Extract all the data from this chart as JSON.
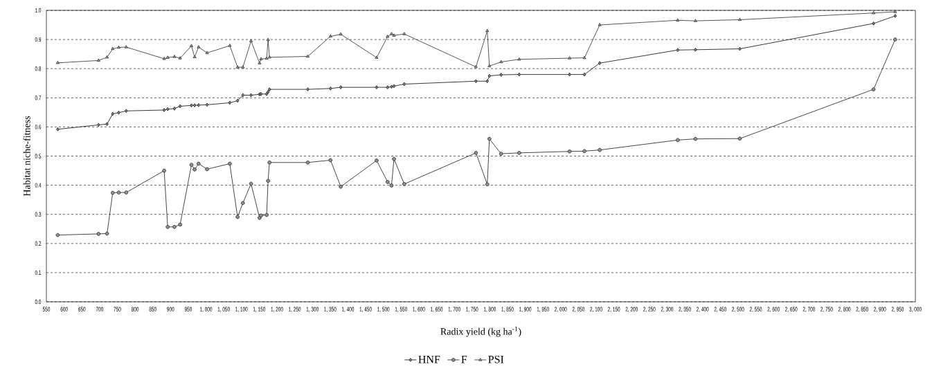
{
  "chart_data": {
    "type": "line",
    "xlabel": "Radix yield (kg ha$^{-1}$)",
    "ylabel": "Habitat niche-fitness",
    "x": [
      582,
      697,
      721,
      737,
      754,
      775,
      882,
      892,
      911,
      927,
      959,
      968,
      979,
      1003,
      1067,
      1089,
      1104,
      1127,
      1151,
      1155,
      1171,
      1175,
      1179,
      1287,
      1351,
      1380,
      1481,
      1512,
      1523,
      1530,
      1559,
      1761,
      1793,
      1799,
      1832,
      1883,
      2025,
      2067,
      2110,
      2330,
      2380,
      2505,
      2882,
      2943
    ],
    "series": [
      {
        "name": "HNF",
        "color": "#222222",
        "marker": "diamond",
        "values": [
          0.592,
          0.607,
          0.61,
          0.645,
          0.649,
          0.655,
          0.658,
          0.661,
          0.663,
          0.671,
          0.674,
          0.674,
          0.675,
          0.676,
          0.683,
          0.69,
          0.709,
          0.709,
          0.712,
          0.713,
          0.713,
          0.72,
          0.729,
          0.729,
          0.732,
          0.736,
          0.736,
          0.736,
          0.738,
          0.74,
          0.747,
          0.757,
          0.757,
          0.775,
          0.779,
          0.78,
          0.78,
          0.78,
          0.819,
          0.864,
          0.865,
          0.868,
          0.955,
          0.981
        ]
      },
      {
        "name": "F",
        "color": "#333333",
        "marker": "circle",
        "values": [
          0.229,
          0.233,
          0.234,
          0.374,
          0.375,
          0.375,
          0.45,
          0.257,
          0.257,
          0.265,
          0.47,
          0.454,
          0.474,
          0.455,
          0.474,
          0.291,
          0.339,
          0.405,
          0.288,
          0.296,
          0.298,
          0.415,
          0.478,
          0.478,
          0.486,
          0.395,
          0.485,
          0.411,
          0.399,
          0.49,
          0.404,
          0.511,
          0.403,
          0.559,
          0.508,
          0.511,
          0.516,
          0.517,
          0.521,
          0.555,
          0.559,
          0.56,
          0.729,
          0.9
        ]
      },
      {
        "name": "PSI",
        "color": "#444444",
        "marker": "triangle",
        "values": [
          0.82,
          0.828,
          0.839,
          0.868,
          0.873,
          0.874,
          0.834,
          0.838,
          0.841,
          0.836,
          0.878,
          0.84,
          0.874,
          0.854,
          0.879,
          0.805,
          0.805,
          0.895,
          0.819,
          0.833,
          0.835,
          0.899,
          0.839,
          0.842,
          0.911,
          0.918,
          0.838,
          0.91,
          0.919,
          0.914,
          0.919,
          0.806,
          0.93,
          0.809,
          0.823,
          0.832,
          0.836,
          0.837,
          0.95,
          0.966,
          0.964,
          0.968,
          0.991,
          0.995
        ]
      }
    ],
    "line_style": "solid",
    "xlim": [
      550,
      3000
    ],
    "xticks": [
      550,
      600,
      650,
      700,
      750,
      800,
      850,
      900,
      950,
      {
        "value": 1000,
        "label": "1, 000"
      },
      {
        "value": 1050,
        "label": "1, 050"
      },
      {
        "value": 1100,
        "label": "1, 100"
      },
      {
        "value": 1150,
        "label": "1, 150"
      },
      {
        "value": 1200,
        "label": "1, 200"
      },
      {
        "value": 1250,
        "label": "1, 250"
      },
      {
        "value": 1300,
        "label": "1, 300"
      },
      {
        "value": 1350,
        "label": "1, 350"
      },
      {
        "value": 1400,
        "label": "1, 400"
      },
      {
        "value": 1450,
        "label": "1, 450"
      },
      {
        "value": 1500,
        "label": "1, 500"
      },
      {
        "value": 1550,
        "label": "1, 550"
      },
      {
        "value": 1600,
        "label": "1, 600"
      },
      {
        "value": 1650,
        "label": "1, 650"
      },
      {
        "value": 1700,
        "label": "1, 700"
      },
      {
        "value": 1750,
        "label": "1, 750"
      },
      {
        "value": 1800,
        "label": "1, 800"
      },
      {
        "value": 1850,
        "label": "1, 850"
      },
      {
        "value": 1900,
        "label": "1, 900"
      },
      {
        "value": 1950,
        "label": "1, 950"
      },
      {
        "value": 2000,
        "label": "2, 000"
      },
      {
        "value": 2050,
        "label": "2, 050"
      },
      {
        "value": 2100,
        "label": "2, 100"
      },
      {
        "value": 2150,
        "label": "2, 150"
      },
      {
        "value": 2200,
        "label": "2, 200"
      },
      {
        "value": 2250,
        "label": "2, 250"
      },
      {
        "value": 2300,
        "label": "2, 300"
      },
      {
        "value": 2350,
        "label": "2, 350"
      },
      {
        "value": 2400,
        "label": "2, 400"
      },
      {
        "value": 2450,
        "label": "2, 450"
      },
      {
        "value": 2500,
        "label": "2, 500"
      },
      {
        "value": 2550,
        "label": "2, 550"
      },
      {
        "value": 2600,
        "label": "2, 600"
      },
      {
        "value": 2650,
        "label": "2, 650"
      },
      {
        "value": 2700,
        "label": "2, 700"
      },
      {
        "value": 2750,
        "label": "2, 750"
      },
      {
        "value": 2800,
        "label": "2, 800"
      },
      {
        "value": 2850,
        "label": "2, 850"
      },
      {
        "value": 2900,
        "label": "2, 900"
      },
      {
        "value": 2950,
        "label": "2, 950"
      },
      {
        "value": 3000,
        "label": "3, 000"
      }
    ],
    "ylim": [
      0,
      1
    ],
    "yticks": [
      {
        "value": 0,
        "label": "0.0"
      },
      {
        "value": 0.1,
        "label": "0.1"
      },
      {
        "value": 0.2,
        "label": "0.2"
      },
      {
        "value": 0.3,
        "label": "0.3"
      },
      {
        "value": 0.4,
        "label": "0.4"
      },
      {
        "value": 0.5,
        "label": "0.5"
      },
      {
        "value": 0.6,
        "label": "0.6"
      },
      {
        "value": 0.7,
        "label": "0.7"
      },
      {
        "value": 0.8,
        "label": "0.8"
      },
      {
        "value": 0.9,
        "label": "0.9"
      },
      {
        "value": 1.0,
        "label": "1.0"
      }
    ],
    "grid": "y",
    "legend": "bottom"
  }
}
